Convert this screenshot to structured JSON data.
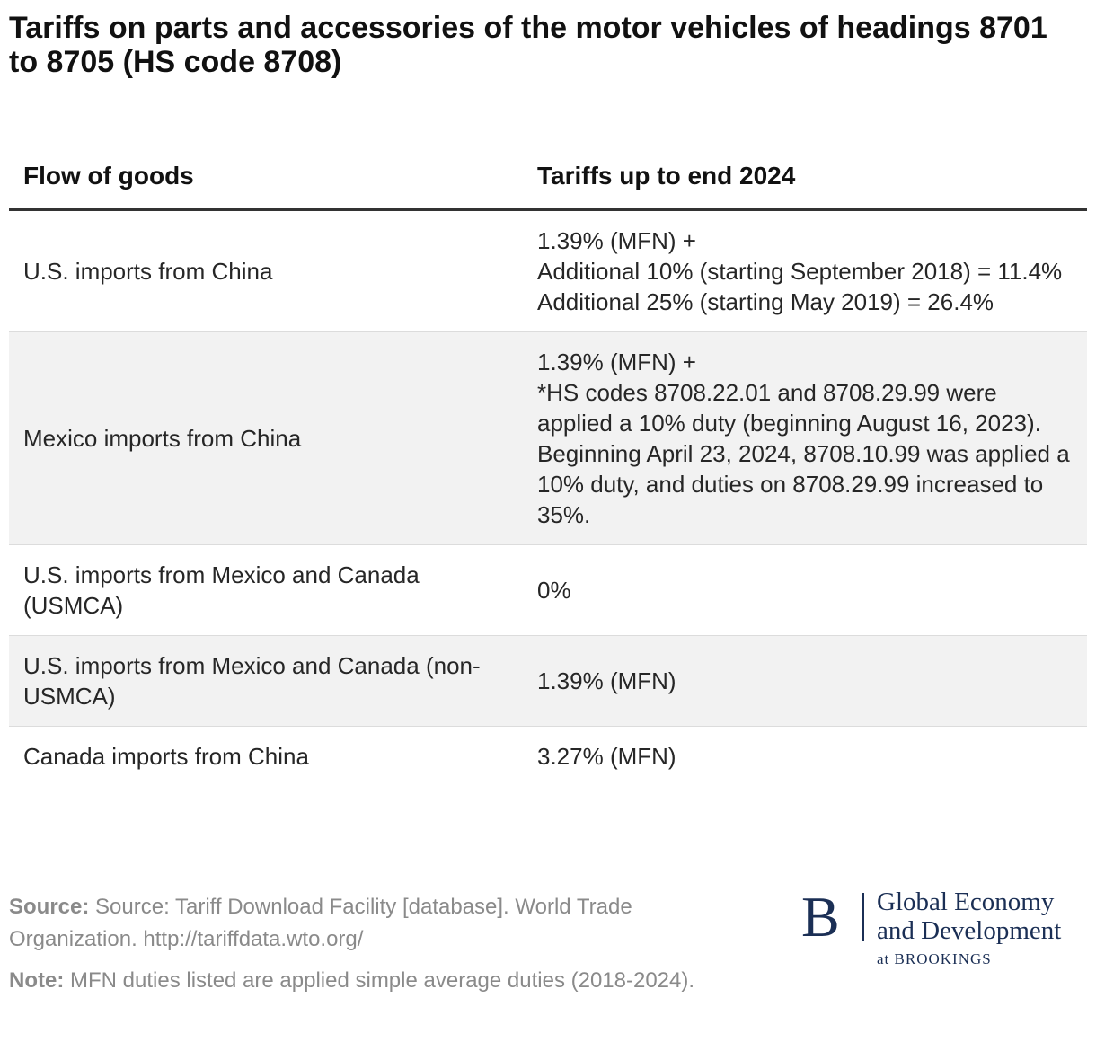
{
  "chart_data": {
    "type": "table",
    "title": "Tariffs on parts and accessories of the motor vehicles of headings 8701 to 8705 (HS code 8708)",
    "columns": [
      "Flow of goods",
      "Tariffs up to end 2024"
    ],
    "rows": [
      {
        "flow": "U.S. imports from China",
        "tariff": [
          "1.39% (MFN) +",
          "Additional 10% (starting September 2018) = 11.4%",
          "Additional 25% (starting May 2019) = 26.4%"
        ]
      },
      {
        "flow": "Mexico imports from China",
        "tariff": [
          "1.39% (MFN) +",
          "*HS codes 8708.22.01 and 8708.29.99 were applied a 10% duty (beginning August 16, 2023). Beginning April 23, 2024, 8708.10.99 was applied a 10% duty, and duties on 8708.29.99 increased to 35%."
        ]
      },
      {
        "flow": "U.S. imports from Mexico and Canada (USMCA)",
        "tariff": [
          "0%"
        ]
      },
      {
        "flow": "U.S. imports from Mexico and Canada (non-USMCA)",
        "tariff": [
          "1.39% (MFN)"
        ]
      },
      {
        "flow": "Canada imports from China",
        "tariff": [
          "3.27% (MFN)"
        ]
      }
    ]
  },
  "footer": {
    "source_label": "Source:",
    "source_text": "Source: Tariff Download Facility [database]. World Trade Organization. http://tariffdata.wto.org/",
    "note_label": "Note:",
    "note_text": "MFN duties listed are applied simple average duties (2018-2024)."
  },
  "logo": {
    "mark": "B",
    "line1": "Global Economy",
    "line2": "and Development",
    "sub": "at BROOKINGS"
  },
  "colors": {
    "text": "#1f1f1f",
    "muted": "#8a8a8a",
    "shade": "#f2f2f2",
    "brand": "#1b2f55"
  }
}
